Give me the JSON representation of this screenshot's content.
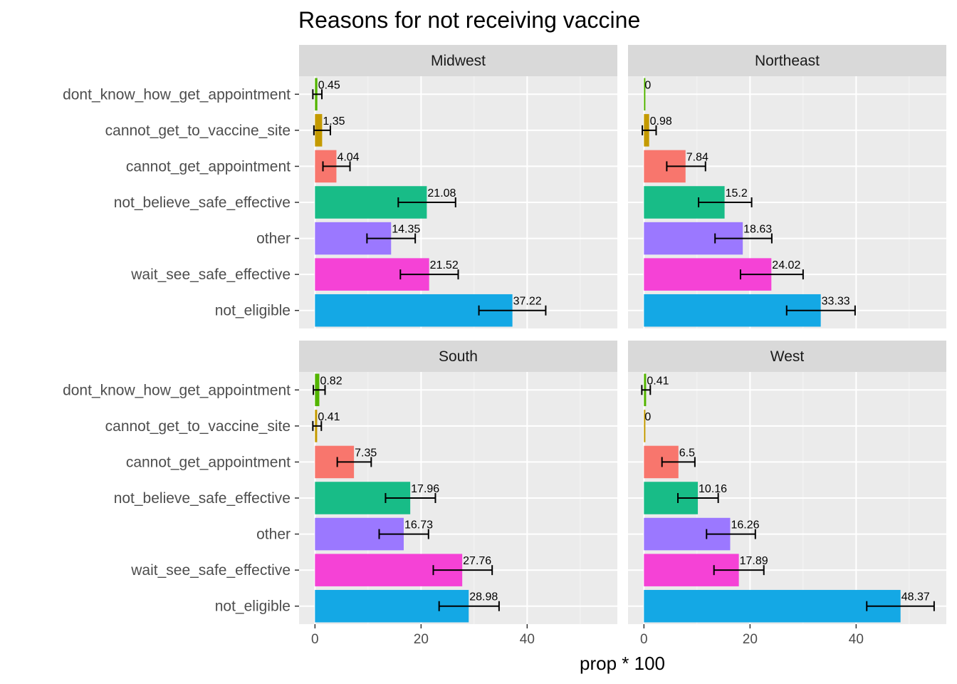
{
  "chart_data": {
    "type": "bar",
    "orientation": "horizontal",
    "title": "Reasons for not receiving vaccine",
    "xlabel": "prop * 100",
    "ylabel": "",
    "xlim": [
      -3,
      57
    ],
    "xticks": [
      0,
      20,
      40
    ],
    "categories": [
      "dont_know_how_get_appointment",
      "cannot_get_to_vaccine_site",
      "cannot_get_appointment",
      "not_believe_safe_effective",
      "other",
      "wait_see_safe_effective",
      "not_eligible"
    ],
    "colors": [
      "#53b400",
      "#c49a00",
      "#f8766d",
      "#18bc87",
      "#9b78ff",
      "#f542d6",
      "#14a8e5"
    ],
    "grid": true,
    "legend": "none",
    "panels": [
      {
        "name": "Midwest",
        "values": [
          0.45,
          1.35,
          4.04,
          21.08,
          14.35,
          21.52,
          37.22
        ],
        "labels": [
          "0.45",
          "1.35",
          "4.04",
          "21.08",
          "14.35",
          "21.52",
          "37.22"
        ],
        "err_low": [
          -0.4,
          -0.2,
          1.5,
          15.7,
          9.8,
          16.1,
          30.9
        ],
        "err_high": [
          1.3,
          2.9,
          6.6,
          26.5,
          18.9,
          27.0,
          43.5
        ]
      },
      {
        "name": "Northeast",
        "values": [
          0,
          0.98,
          7.84,
          15.2,
          18.63,
          24.02,
          33.33
        ],
        "labels": [
          "0",
          "0.98",
          "7.84",
          "15.2",
          "18.63",
          "24.02",
          "33.33"
        ],
        "err_low": [
          0,
          -0.3,
          4.3,
          10.3,
          13.4,
          18.2,
          26.9
        ],
        "err_high": [
          0,
          2.3,
          11.6,
          20.3,
          24.1,
          30.0,
          39.8
        ]
      },
      {
        "name": "South",
        "values": [
          0.82,
          0.41,
          7.35,
          17.96,
          16.73,
          27.76,
          28.98
        ],
        "labels": [
          "0.82",
          "0.41",
          "7.35",
          "17.96",
          "16.73",
          "27.76",
          "28.98"
        ],
        "err_low": [
          -0.3,
          -0.4,
          4.2,
          13.3,
          12.1,
          22.3,
          23.4
        ],
        "err_high": [
          1.9,
          1.2,
          10.6,
          22.7,
          21.4,
          33.4,
          34.7
        ]
      },
      {
        "name": "West",
        "values": [
          0.41,
          0,
          6.5,
          10.16,
          16.26,
          17.89,
          48.37
        ],
        "labels": [
          "0.41",
          "0",
          "6.5",
          "10.16",
          "16.26",
          "17.89",
          "48.37"
        ],
        "err_low": [
          -0.4,
          0,
          3.4,
          6.4,
          11.8,
          13.2,
          42.0
        ],
        "err_high": [
          1.2,
          0,
          9.6,
          14.0,
          21.0,
          22.6,
          54.7
        ]
      }
    ]
  }
}
